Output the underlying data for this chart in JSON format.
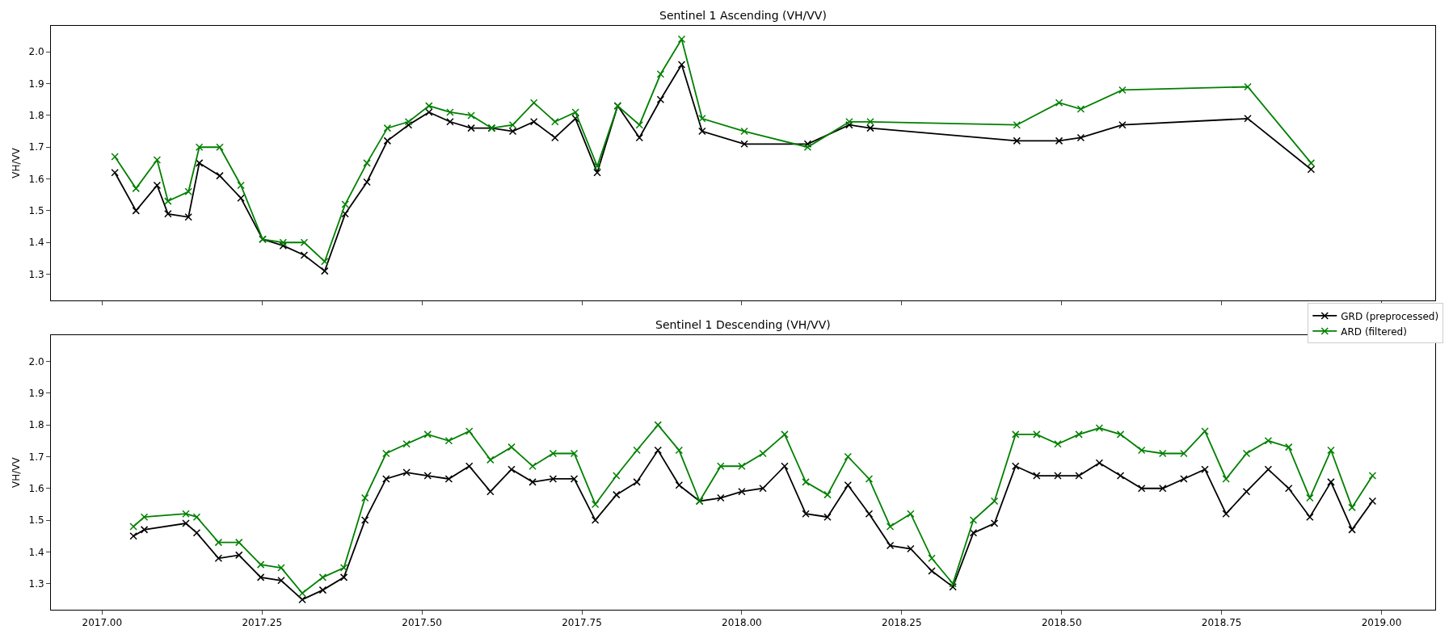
{
  "chart_data": [
    {
      "type": "line",
      "title": "Sentinel 1 Ascending (VH/VV)",
      "ylabel": "VH/VV",
      "marker": "cross",
      "line_style": "solid",
      "tick_labels": "y",
      "legend": "bottom right",
      "xlim": [
        2016.92,
        2019.084
      ],
      "ylim": [
        1.218,
        2.082
      ],
      "xticks": [
        {
          "value": 2017,
          "label": null
        },
        {
          "value": 2017.25,
          "label": null
        },
        {
          "value": 2017.5,
          "label": null
        },
        {
          "value": 2017.75,
          "label": null
        },
        {
          "value": 2018,
          "label": null
        },
        {
          "value": 2018.25,
          "label": null
        },
        {
          "value": 2018.5,
          "label": null
        },
        {
          "value": 2018.75,
          "label": null
        },
        {
          "value": 2019,
          "label": null
        }
      ],
      "yticks": [
        {
          "value": 1.3,
          "label": "1.3"
        },
        {
          "value": 1.4,
          "label": "1.4"
        },
        {
          "value": 1.5,
          "label": "1.5"
        },
        {
          "value": 1.6,
          "label": "1.6"
        },
        {
          "value": 1.7,
          "label": "1.7"
        },
        {
          "value": 1.8,
          "label": "1.8"
        },
        {
          "value": 1.9,
          "label": "1.9"
        },
        {
          "value": 2.0,
          "label": "2.0"
        }
      ],
      "series": [
        {
          "name": "GRD (preprocessed)",
          "color": "#000000",
          "x": [
            2017.02,
            2017.053,
            2017.086,
            2017.103,
            2017.135,
            2017.152,
            2017.184,
            2017.217,
            2017.251,
            2017.283,
            2017.316,
            2017.348,
            2017.38,
            2017.414,
            2017.446,
            2017.479,
            2017.511,
            2017.544,
            2017.577,
            2017.609,
            2017.642,
            2017.675,
            2017.708,
            2017.74,
            2017.774,
            2017.806,
            2017.84,
            2017.873,
            2017.906,
            2017.938,
            2018.004,
            2018.103,
            2018.168,
            2018.201,
            2018.43,
            2018.496,
            2018.53,
            2018.595,
            2018.791,
            2018.89
          ],
          "values": [
            1.62,
            1.5,
            1.58,
            1.49,
            1.48,
            1.65,
            1.61,
            1.54,
            1.41,
            1.39,
            1.36,
            1.31,
            1.49,
            1.59,
            1.72,
            1.77,
            1.81,
            1.78,
            1.76,
            1.76,
            1.75,
            1.78,
            1.73,
            1.79,
            1.62,
            1.83,
            1.73,
            1.85,
            1.96,
            1.75,
            1.71,
            1.71,
            1.77,
            1.76,
            1.72,
            1.72,
            1.73,
            1.77,
            1.79,
            1.63
          ]
        },
        {
          "name": "ARD (filtered)",
          "color": "#008000",
          "x": [
            2017.02,
            2017.053,
            2017.086,
            2017.103,
            2017.135,
            2017.152,
            2017.184,
            2017.217,
            2017.251,
            2017.283,
            2017.316,
            2017.348,
            2017.38,
            2017.414,
            2017.446,
            2017.479,
            2017.511,
            2017.544,
            2017.577,
            2017.609,
            2017.642,
            2017.675,
            2017.708,
            2017.74,
            2017.774,
            2017.806,
            2017.84,
            2017.873,
            2017.906,
            2017.938,
            2018.004,
            2018.103,
            2018.168,
            2018.201,
            2018.43,
            2018.496,
            2018.53,
            2018.595,
            2018.791,
            2018.89
          ],
          "values": [
            1.67,
            1.57,
            1.66,
            1.53,
            1.56,
            1.7,
            1.7,
            1.58,
            1.41,
            1.4,
            1.4,
            1.34,
            1.52,
            1.65,
            1.76,
            1.78,
            1.83,
            1.81,
            1.8,
            1.76,
            1.77,
            1.84,
            1.78,
            1.81,
            1.64,
            1.83,
            1.77,
            1.93,
            2.04,
            1.79,
            1.75,
            1.7,
            1.78,
            1.78,
            1.77,
            1.84,
            1.82,
            1.88,
            1.89,
            1.65
          ]
        }
      ]
    },
    {
      "type": "line",
      "title": "Sentinel 1 Descending (VH/VV)",
      "ylabel": "VH/VV",
      "marker": "cross",
      "line_style": "solid",
      "xlim": [
        2016.92,
        2019.084
      ],
      "ylim": [
        1.218,
        2.082
      ],
      "xticks": [
        {
          "value": 2017,
          "label": "2017.00"
        },
        {
          "value": 2017.25,
          "label": "2017.25"
        },
        {
          "value": 2017.5,
          "label": "2017.50"
        },
        {
          "value": 2017.75,
          "label": "2017.75"
        },
        {
          "value": 2018,
          "label": "2018.00"
        },
        {
          "value": 2018.25,
          "label": "2018.25"
        },
        {
          "value": 2018.5,
          "label": "2018.50"
        },
        {
          "value": 2018.75,
          "label": "2018.75"
        },
        {
          "value": 2019,
          "label": "2019.00"
        }
      ],
      "yticks": [
        {
          "value": 1.3,
          "label": "1.3"
        },
        {
          "value": 1.4,
          "label": "1.4"
        },
        {
          "value": 1.5,
          "label": "1.5"
        },
        {
          "value": 1.6,
          "label": "1.6"
        },
        {
          "value": 1.7,
          "label": "1.7"
        },
        {
          "value": 1.8,
          "label": "1.8"
        },
        {
          "value": 1.9,
          "label": "1.9"
        },
        {
          "value": 2.0,
          "label": "2.0"
        }
      ],
      "series": [
        {
          "color": "#000000",
          "x": [
            2017.049,
            2017.066,
            2017.131,
            2017.148,
            2017.182,
            2017.214,
            2017.248,
            2017.28,
            2017.313,
            2017.345,
            2017.378,
            2017.411,
            2017.444,
            2017.476,
            2017.509,
            2017.542,
            2017.574,
            2017.607,
            2017.64,
            2017.673,
            2017.705,
            2017.738,
            2017.771,
            2017.804,
            2017.836,
            2017.869,
            2017.902,
            2017.934,
            2017.967,
            2018.0,
            2018.033,
            2018.067,
            2018.1,
            2018.134,
            2018.166,
            2018.199,
            2018.232,
            2018.264,
            2018.297,
            2018.33,
            2018.362,
            2018.395,
            2018.428,
            2018.461,
            2018.494,
            2018.527,
            2018.559,
            2018.592,
            2018.625,
            2018.658,
            2018.691,
            2018.724,
            2018.757,
            2018.789,
            2018.823,
            2018.855,
            2018.888,
            2018.921,
            2018.954,
            2018.986
          ],
          "values": [
            1.45,
            1.47,
            1.49,
            1.46,
            1.38,
            1.39,
            1.32,
            1.31,
            1.25,
            1.28,
            1.32,
            1.5,
            1.63,
            1.65,
            1.64,
            1.63,
            1.67,
            1.59,
            1.66,
            1.62,
            1.63,
            1.63,
            1.5,
            1.58,
            1.62,
            1.72,
            1.61,
            1.56,
            1.57,
            1.59,
            1.6,
            1.67,
            1.52,
            1.51,
            1.61,
            1.52,
            1.42,
            1.41,
            1.34,
            1.29,
            1.46,
            1.49,
            1.67,
            1.64,
            1.64,
            1.64,
            1.68,
            1.64,
            1.6,
            1.6,
            1.63,
            1.66,
            1.52,
            1.59,
            1.66,
            1.6,
            1.51,
            1.62,
            1.47,
            1.56
          ]
        },
        {
          "color": "#008000",
          "x": [
            2017.049,
            2017.066,
            2017.131,
            2017.148,
            2017.182,
            2017.214,
            2017.248,
            2017.28,
            2017.313,
            2017.345,
            2017.378,
            2017.411,
            2017.444,
            2017.476,
            2017.509,
            2017.542,
            2017.574,
            2017.607,
            2017.64,
            2017.673,
            2017.705,
            2017.738,
            2017.771,
            2017.804,
            2017.836,
            2017.869,
            2017.902,
            2017.934,
            2017.967,
            2018.0,
            2018.033,
            2018.067,
            2018.1,
            2018.134,
            2018.166,
            2018.199,
            2018.232,
            2018.264,
            2018.297,
            2018.33,
            2018.362,
            2018.395,
            2018.428,
            2018.461,
            2018.494,
            2018.527,
            2018.559,
            2018.592,
            2018.625,
            2018.658,
            2018.691,
            2018.724,
            2018.757,
            2018.789,
            2018.823,
            2018.855,
            2018.888,
            2018.921,
            2018.954,
            2018.986
          ],
          "values": [
            1.48,
            1.51,
            1.52,
            1.51,
            1.43,
            1.43,
            1.36,
            1.35,
            1.27,
            1.32,
            1.35,
            1.57,
            1.71,
            1.74,
            1.77,
            1.75,
            1.78,
            1.69,
            1.73,
            1.67,
            1.71,
            1.71,
            1.55,
            1.64,
            1.72,
            1.8,
            1.72,
            1.56,
            1.67,
            1.67,
            1.71,
            1.77,
            1.62,
            1.58,
            1.7,
            1.63,
            1.48,
            1.52,
            1.38,
            1.3,
            1.5,
            1.56,
            1.77,
            1.77,
            1.74,
            1.77,
            1.79,
            1.77,
            1.72,
            1.71,
            1.71,
            1.78,
            1.63,
            1.71,
            1.75,
            1.73,
            1.57,
            1.72,
            1.54,
            1.64
          ]
        }
      ]
    }
  ]
}
